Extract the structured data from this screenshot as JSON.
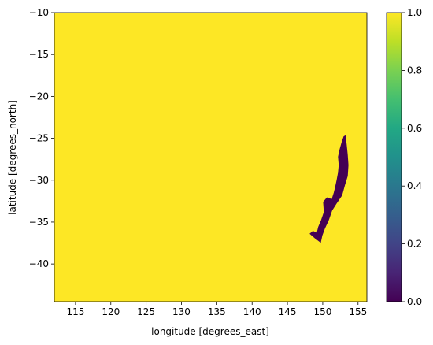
{
  "chart_data": {
    "type": "heatmap",
    "xlabel": "longitude [degrees_east]",
    "ylabel": "latitude [degrees_north]",
    "xlim": [
      112,
      156.25
    ],
    "ylim": [
      -44.5,
      -10
    ],
    "xticks": [
      115,
      120,
      125,
      130,
      135,
      140,
      145,
      150,
      155
    ],
    "yticks": [
      -10,
      -15,
      -20,
      -25,
      -30,
      -35,
      -40
    ],
    "background_value": 1.0,
    "region_value": 0.0,
    "region_outline": [
      [
        153.2,
        -24.7
      ],
      [
        153.35,
        -25.8
      ],
      [
        153.5,
        -27.0
      ],
      [
        153.6,
        -28.2
      ],
      [
        153.5,
        -29.5
      ],
      [
        153.1,
        -30.6
      ],
      [
        152.7,
        -31.8
      ],
      [
        151.9,
        -32.8
      ],
      [
        151.3,
        -33.6
      ],
      [
        150.8,
        -34.8
      ],
      [
        150.3,
        -35.7
      ],
      [
        149.9,
        -36.6
      ],
      [
        149.7,
        -37.4
      ],
      [
        148.9,
        -36.9
      ],
      [
        148.2,
        -36.4
      ],
      [
        148.6,
        -36.1
      ],
      [
        149.2,
        -36.3
      ],
      [
        149.4,
        -35.6
      ],
      [
        149.8,
        -34.8
      ],
      [
        150.2,
        -33.8
      ],
      [
        150.1,
        -32.6
      ],
      [
        150.6,
        -32.1
      ],
      [
        151.3,
        -32.3
      ],
      [
        151.6,
        -31.5
      ],
      [
        151.8,
        -30.8
      ],
      [
        152.0,
        -30.0
      ],
      [
        152.2,
        -29.1
      ],
      [
        152.3,
        -28.2
      ],
      [
        152.2,
        -27.2
      ],
      [
        152.4,
        -26.4
      ],
      [
        152.7,
        -25.5
      ],
      [
        153.0,
        -24.8
      ]
    ],
    "colorbar": {
      "min": 0.0,
      "max": 1.0,
      "ticks": [
        "0.0",
        "0.2",
        "0.4",
        "0.6",
        "0.8",
        "1.0"
      ],
      "colormap": "viridis"
    },
    "colors": {
      "low": "#440154",
      "high": "#fde725"
    }
  }
}
